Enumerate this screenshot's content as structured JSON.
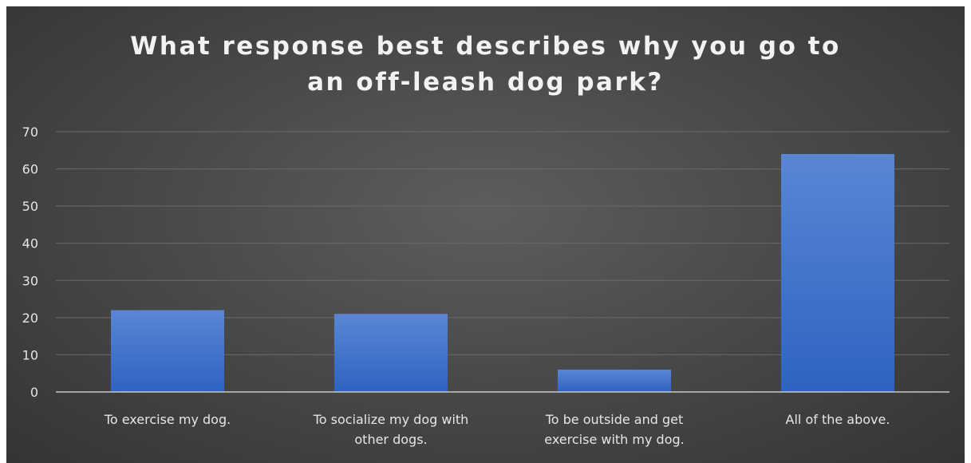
{
  "chart_data": {
    "type": "bar",
    "title_lines": [
      "What response best describes why you go to",
      "an off-leash dog park?"
    ],
    "categories": [
      [
        "To exercise my dog."
      ],
      [
        "To socialize my dog with",
        "other dogs."
      ],
      [
        "To be outside and get",
        "exercise with my dog."
      ],
      [
        "All of the above."
      ]
    ],
    "values": [
      22,
      21,
      6,
      64
    ],
    "ylim": [
      0,
      70
    ],
    "yticks": [
      0,
      10,
      20,
      30,
      40,
      50,
      60,
      70
    ],
    "grid": true,
    "colors": {
      "bar_top": "#5a86d4",
      "bar_bottom": "#2f62c2",
      "grid": "#6a6a6a",
      "axis": "#c8c8c8",
      "text": "#e6e6e6"
    }
  }
}
